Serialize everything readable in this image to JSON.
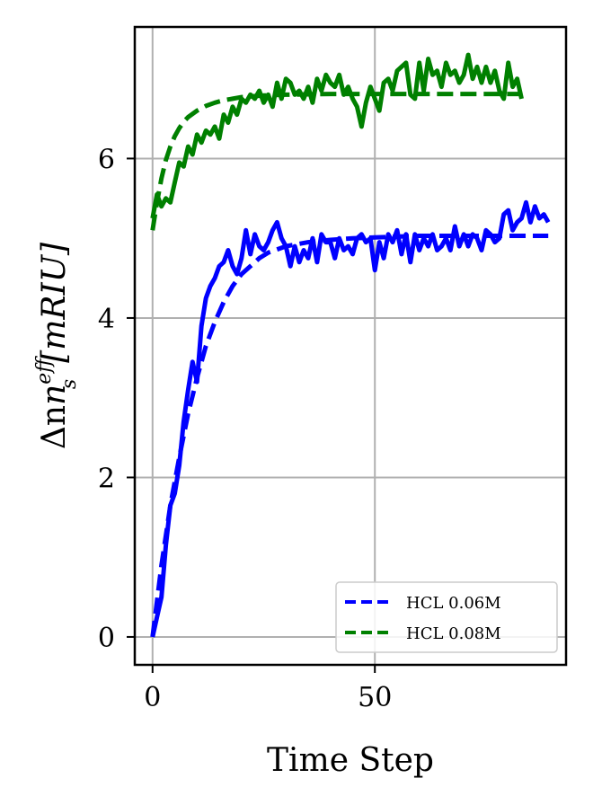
{
  "chart_data": {
    "type": "line",
    "xlabel": "Time Step",
    "ylabel_html": "Δn",
    "ylabel_sub": "s",
    "ylabel_sup": "eff",
    "ylabel_tail": "[mRIU]",
    "xlim": [
      -4,
      93
    ],
    "ylim": [
      -0.35,
      7.65
    ],
    "xticks": [
      0,
      50
    ],
    "yticks": [
      0,
      2,
      4,
      6
    ],
    "grid": true,
    "legend_position": "bottom-right",
    "series": [
      {
        "name": "HCL 0.06M",
        "style": "dashed",
        "color": "#0000ff",
        "x": [
          0,
          2,
          4,
          6,
          8,
          10,
          12,
          14,
          16,
          18,
          20,
          22,
          24,
          26,
          28,
          30,
          35,
          40,
          45,
          50,
          55,
          60,
          70,
          80,
          89
        ],
        "y": [
          0.0,
          0.9,
          1.65,
          2.25,
          2.8,
          3.25,
          3.65,
          3.95,
          4.2,
          4.4,
          4.55,
          4.65,
          4.75,
          4.82,
          4.86,
          4.9,
          4.95,
          4.98,
          5.0,
          5.01,
          5.02,
          5.03,
          5.03,
          5.03,
          5.03
        ]
      },
      {
        "name": "",
        "style": "solid",
        "color": "#0000ff",
        "x": [
          0,
          1,
          2,
          3,
          4,
          5,
          6,
          7,
          8,
          9,
          10,
          11,
          12,
          13,
          14,
          15,
          16,
          17,
          18,
          19,
          20,
          21,
          22,
          23,
          24,
          25,
          26,
          27,
          28,
          29,
          30,
          31,
          32,
          33,
          34,
          35,
          36,
          37,
          38,
          39,
          40,
          41,
          42,
          43,
          44,
          45,
          46,
          47,
          48,
          49,
          50,
          51,
          52,
          53,
          54,
          55,
          56,
          57,
          58,
          59,
          60,
          61,
          62,
          63,
          64,
          65,
          66,
          67,
          68,
          69,
          70,
          71,
          72,
          73,
          74,
          75,
          76,
          77,
          78,
          79,
          80,
          81,
          82,
          83,
          84,
          85,
          86,
          87,
          88,
          89
        ],
        "y": [
          0.0,
          0.25,
          0.5,
          1.15,
          1.65,
          1.8,
          2.15,
          2.7,
          3.1,
          3.45,
          3.2,
          3.9,
          4.25,
          4.4,
          4.5,
          4.65,
          4.7,
          4.85,
          4.65,
          4.55,
          4.75,
          5.1,
          4.8,
          5.05,
          4.9,
          4.85,
          4.95,
          5.1,
          5.2,
          5.0,
          4.9,
          4.65,
          4.9,
          4.7,
          4.85,
          4.75,
          5.0,
          4.7,
          5.05,
          4.95,
          4.95,
          4.75,
          5.0,
          4.85,
          4.9,
          4.8,
          5.0,
          5.05,
          4.95,
          5.0,
          4.6,
          4.95,
          4.75,
          5.05,
          4.95,
          5.1,
          4.8,
          5.05,
          4.7,
          5.05,
          4.85,
          5.0,
          4.9,
          5.05,
          4.85,
          4.9,
          5.0,
          4.85,
          5.15,
          4.9,
          5.05,
          4.9,
          5.05,
          5.0,
          4.85,
          5.1,
          5.05,
          4.95,
          5.0,
          5.3,
          5.35,
          5.1,
          5.2,
          5.25,
          5.45,
          5.2,
          5.4,
          5.25,
          5.3,
          5.2
        ]
      },
      {
        "name": "HCL 0.08M",
        "style": "dashed",
        "color": "#008000",
        "x": [
          0,
          1,
          2,
          3,
          4,
          5,
          6,
          7,
          8,
          10,
          12,
          14,
          16,
          18,
          20,
          25,
          30,
          40,
          50,
          60,
          70,
          80,
          83
        ],
        "y": [
          5.1,
          5.45,
          5.75,
          5.98,
          6.15,
          6.28,
          6.38,
          6.46,
          6.52,
          6.6,
          6.66,
          6.7,
          6.73,
          6.75,
          6.77,
          6.79,
          6.8,
          6.81,
          6.81,
          6.81,
          6.81,
          6.81,
          6.81
        ]
      },
      {
        "name": "",
        "style": "solid",
        "color": "#008000",
        "x": [
          0,
          1,
          2,
          3,
          4,
          5,
          6,
          7,
          8,
          9,
          10,
          11,
          12,
          13,
          14,
          15,
          16,
          17,
          18,
          19,
          20,
          21,
          22,
          23,
          24,
          25,
          26,
          27,
          28,
          29,
          30,
          31,
          32,
          33,
          34,
          35,
          36,
          37,
          38,
          39,
          40,
          41,
          42,
          43,
          44,
          45,
          46,
          47,
          48,
          49,
          50,
          51,
          52,
          53,
          54,
          55,
          56,
          57,
          58,
          59,
          60,
          61,
          62,
          63,
          64,
          65,
          66,
          67,
          68,
          69,
          70,
          71,
          72,
          73,
          74,
          75,
          76,
          77,
          78,
          79,
          80,
          81,
          82,
          83
        ],
        "y": [
          5.25,
          5.55,
          5.4,
          5.5,
          5.45,
          5.7,
          5.95,
          5.9,
          6.15,
          6.05,
          6.3,
          6.2,
          6.35,
          6.3,
          6.4,
          6.25,
          6.55,
          6.45,
          6.65,
          6.55,
          6.75,
          6.7,
          6.8,
          6.75,
          6.85,
          6.7,
          6.8,
          6.65,
          6.95,
          6.75,
          7.0,
          6.95,
          6.8,
          6.85,
          6.75,
          6.9,
          6.7,
          7.0,
          6.85,
          7.05,
          6.95,
          6.9,
          7.05,
          6.8,
          6.9,
          6.75,
          6.65,
          6.4,
          6.7,
          6.9,
          6.75,
          6.6,
          6.95,
          7.0,
          6.85,
          7.1,
          7.15,
          7.2,
          6.8,
          6.75,
          7.2,
          6.85,
          7.25,
          7.05,
          7.1,
          6.9,
          7.2,
          7.05,
          7.1,
          6.95,
          7.05,
          7.3,
          7.0,
          7.15,
          6.95,
          7.15,
          6.95,
          7.1,
          6.85,
          6.75,
          7.2,
          6.9,
          7.0,
          6.75
        ]
      }
    ]
  }
}
